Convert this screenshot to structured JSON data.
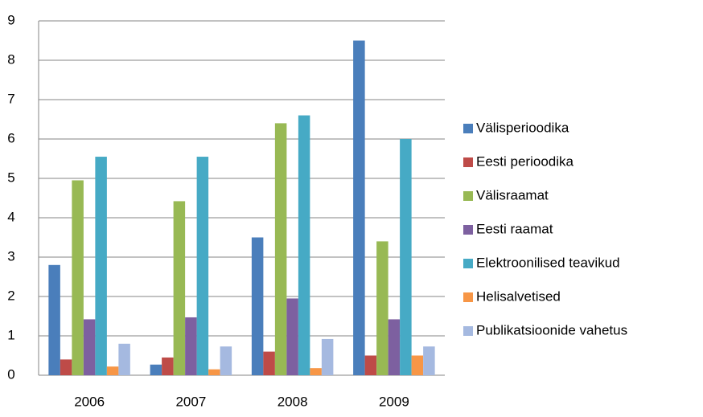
{
  "chart_data": {
    "type": "bar",
    "categories": [
      "2006",
      "2007",
      "2008",
      "2009"
    ],
    "series": [
      {
        "name": "Välisperioodika",
        "color": "#4a7ebb",
        "values": [
          2.8,
          0.27,
          3.5,
          8.5
        ]
      },
      {
        "name": "Eesti perioodika",
        "color": "#be4b48",
        "values": [
          0.4,
          0.45,
          0.6,
          0.5
        ]
      },
      {
        "name": "Välisraamat",
        "color": "#98b954",
        "values": [
          4.95,
          4.42,
          6.4,
          3.4
        ]
      },
      {
        "name": "Eesti raamat",
        "color": "#7d60a0",
        "values": [
          1.42,
          1.47,
          1.95,
          1.42
        ]
      },
      {
        "name": "Elektroonilised teavikud",
        "color": "#46aac5",
        "values": [
          5.55,
          5.55,
          6.6,
          6.0
        ]
      },
      {
        "name": "Helisalvetised",
        "color": "#f79646",
        "values": [
          0.22,
          0.15,
          0.18,
          0.5
        ]
      },
      {
        "name": "Publikatsioonide vahetus",
        "color": "#a5b9e0",
        "values": [
          0.8,
          0.73,
          0.92,
          0.73
        ]
      }
    ],
    "ylim": [
      0,
      9
    ],
    "yticks": [
      0,
      1,
      2,
      3,
      4,
      5,
      6,
      7,
      8,
      9
    ],
    "grid": true,
    "legend": "right"
  }
}
